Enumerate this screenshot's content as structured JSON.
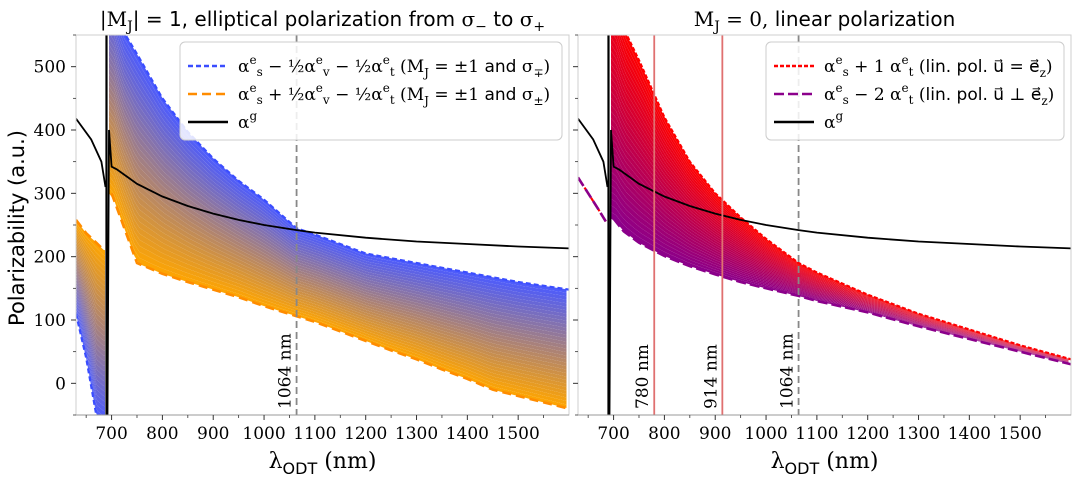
{
  "figure": {
    "ylabel": "Polarizability (a.u.)",
    "xlabel": "λODT (nm)"
  },
  "chart_data": [
    {
      "type": "area",
      "title": "|MJ| = 1, elliptical polarization from σ− to σ+",
      "xlabel": "λODT (nm)",
      "ylabel": "Polarizability (a.u.)",
      "xlim": [
        630,
        1600
      ],
      "ylim": [
        -50,
        550
      ],
      "xticks": [
        700,
        800,
        900,
        1000,
        1100,
        1200,
        1300,
        1400,
        1500
      ],
      "yticks": [
        0,
        100,
        200,
        300,
        400,
        500
      ],
      "resonance_nm": 690,
      "grid": false,
      "legend_position": "top-right",
      "band_colors": {
        "upper": "#4b5bff",
        "lower": "#ffa500"
      },
      "series": [
        {
          "name": "α_s^e − ½α_v^e − ½α_t^e (MJ = ±1 and σ∓)",
          "color": "#3a4dff",
          "style": "dashed",
          "left_branch": {
            "x": [
              630,
              650,
              670,
              685
            ],
            "y": [
              110,
              40,
              -50,
              -60
            ]
          },
          "x": [
            700,
            720,
            750,
            800,
            850,
            900,
            950,
            1000,
            1064,
            1100,
            1200,
            1300,
            1400,
            1500,
            1600
          ],
          "y": [
            620,
            560,
            520,
            450,
            397,
            355,
            320,
            290,
            245,
            235,
            205,
            190,
            175,
            160,
            148
          ]
        },
        {
          "name": "α_s^e + ½α_v^e − ½α_t^e (MJ = ±1 and σ±)",
          "color": "#ff8c00",
          "style": "dashed",
          "left_branch": {
            "x": [
              630,
              650,
              670,
              685
            ],
            "y": [
              258,
              237,
              222,
              210
            ]
          },
          "x": [
            700,
            750,
            800,
            850,
            900,
            950,
            1000,
            1064,
            1100,
            1200,
            1250,
            1300,
            1350,
            1400,
            1450,
            1500,
            1600
          ],
          "y": [
            300,
            190,
            173,
            160,
            148,
            136,
            122,
            106,
            97,
            67,
            52,
            38,
            22,
            7,
            -10,
            -20,
            -40
          ]
        },
        {
          "name": "α^g",
          "color": "#000000",
          "style": "solid",
          "left_branch": {
            "x": [
              630,
              660,
              680,
              688
            ],
            "y": [
              418,
              385,
              350,
              310
            ]
          },
          "x": [
            692,
            695,
            700,
            710,
            750,
            800,
            850,
            900,
            950,
            1000,
            1064,
            1100,
            1200,
            1300,
            1400,
            1500,
            1600
          ],
          "y": [
            -50,
            400,
            342,
            338,
            315,
            295,
            280,
            268,
            258,
            250,
            242,
            238,
            230,
            224,
            220,
            216,
            213
          ]
        }
      ],
      "annotations": [
        {
          "x": 1064,
          "label": "1064 nm",
          "line_color": "#888888",
          "style": "dashed"
        }
      ]
    },
    {
      "type": "area",
      "title": "MJ = 0, linear polarization",
      "xlabel": "λODT (nm)",
      "xlim": [
        630,
        1600
      ],
      "ylim": [
        -50,
        550
      ],
      "xticks": [
        700,
        800,
        900,
        1000,
        1100,
        1200,
        1300,
        1400,
        1500
      ],
      "yticks": [
        0,
        100,
        200,
        300,
        400,
        500
      ],
      "resonance_nm": 690,
      "grid": false,
      "legend_position": "top-right",
      "band_colors": {
        "upper": "#ff0000",
        "lower": "#8b008b"
      },
      "series": [
        {
          "name": "α_s^e + 1 α_t^e (lin. pol. u = e_z)",
          "color": "#ff0000",
          "style": "dashed",
          "left_branch": {
            "x": [
              630,
              650,
              670,
              685
            ],
            "y": [
              325,
              300,
              275,
              255
            ]
          },
          "x": [
            700,
            720,
            750,
            800,
            850,
            900,
            950,
            1000,
            1064,
            1100,
            1200,
            1300,
            1400,
            1500,
            1600
          ],
          "y": [
            620,
            560,
            510,
            420,
            350,
            300,
            262,
            228,
            190,
            175,
            140,
            110,
            85,
            60,
            38
          ]
        },
        {
          "name": "α_s^e − 2 α_t^e (lin. pol. u ⊥ e_z)",
          "color": "#8b008b",
          "style": "dashed",
          "left_branch": {
            "x": [
              630,
              650,
              670,
              685
            ],
            "y": [
              325,
              300,
              275,
              255
            ]
          },
          "x": [
            700,
            720,
            750,
            800,
            850,
            900,
            950,
            1000,
            1064,
            1100,
            1200,
            1300,
            1400,
            1500,
            1600
          ],
          "y": [
            260,
            240,
            222,
            201,
            185,
            172,
            160,
            150,
            138,
            130,
            112,
            90,
            70,
            50,
            30
          ]
        },
        {
          "name": "α^g",
          "color": "#000000",
          "style": "solid",
          "left_branch": {
            "x": [
              630,
              660,
              680,
              688
            ],
            "y": [
              418,
              385,
              350,
              310
            ]
          },
          "x": [
            692,
            695,
            700,
            710,
            750,
            800,
            850,
            900,
            950,
            1000,
            1064,
            1100,
            1200,
            1300,
            1400,
            1500,
            1600
          ],
          "y": [
            -50,
            400,
            342,
            338,
            315,
            295,
            280,
            268,
            258,
            250,
            242,
            238,
            230,
            224,
            220,
            216,
            213
          ]
        }
      ],
      "annotations": [
        {
          "x": 780,
          "label": "780 nm",
          "line_color": "#e07070",
          "style": "solid"
        },
        {
          "x": 914,
          "label": "914 nm",
          "line_color": "#e07070",
          "style": "solid"
        },
        {
          "x": 1064,
          "label": "1064 nm",
          "line_color": "#888888",
          "style": "dashed"
        }
      ]
    }
  ]
}
